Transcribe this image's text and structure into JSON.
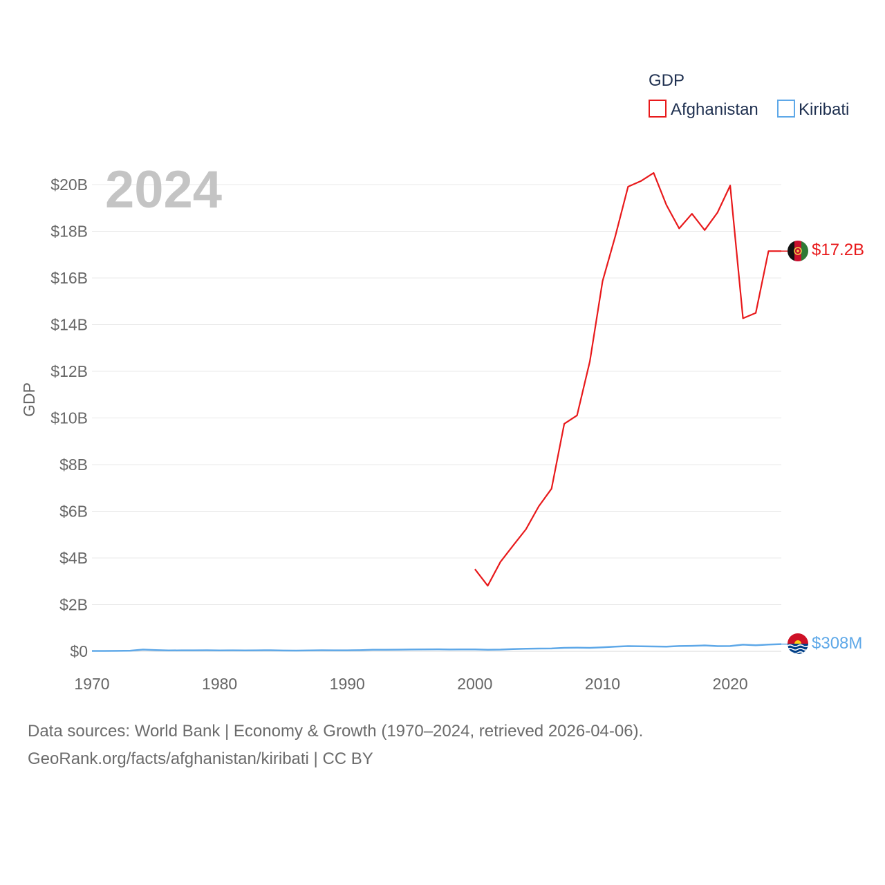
{
  "chart_data": {
    "type": "line",
    "title": "",
    "legend_title": "GDP",
    "legend_position": "top-right",
    "ylabel": "GDP",
    "xlabel": "",
    "year_watermark": "2024",
    "xlim": [
      1970,
      2024
    ],
    "ylim": [
      0,
      20
    ],
    "x_ticks": [
      1970,
      1980,
      1990,
      2000,
      2010,
      2020
    ],
    "y_ticks": [
      0,
      2,
      4,
      6,
      8,
      10,
      12,
      14,
      16,
      18,
      20
    ],
    "y_tick_labels": [
      "$0",
      "$2B",
      "$4B",
      "$6B",
      "$8B",
      "$10B",
      "$12B",
      "$14B",
      "$16B",
      "$18B",
      "$20B"
    ],
    "y_unit": "billion USD",
    "series": [
      {
        "name": "Afghanistan",
        "color": "#e8191b",
        "end_label": "$17.2B",
        "x": [
          2000,
          2001,
          2002,
          2003,
          2004,
          2005,
          2006,
          2007,
          2008,
          2009,
          2010,
          2011,
          2012,
          2013,
          2014,
          2015,
          2016,
          2017,
          2018,
          2019,
          2020,
          2021,
          2022,
          2023,
          2024
        ],
        "values": [
          3.52,
          2.81,
          3.83,
          4.54,
          5.23,
          6.21,
          6.97,
          9.75,
          10.11,
          12.42,
          15.86,
          17.8,
          19.91,
          20.15,
          20.5,
          19.13,
          18.12,
          18.75,
          18.05,
          18.8,
          19.96,
          14.27,
          14.5,
          17.15,
          17.15
        ]
      },
      {
        "name": "Kiribati",
        "color": "#5ea8e8",
        "end_label": "$308M",
        "x": [
          1970,
          1971,
          1972,
          1973,
          1974,
          1975,
          1976,
          1977,
          1978,
          1979,
          1980,
          1981,
          1982,
          1983,
          1984,
          1985,
          1986,
          1987,
          1988,
          1989,
          1990,
          1991,
          1992,
          1993,
          1994,
          1995,
          1996,
          1997,
          1998,
          1999,
          2000,
          2001,
          2002,
          2003,
          2004,
          2005,
          2006,
          2007,
          2008,
          2009,
          2010,
          2011,
          2012,
          2013,
          2014,
          2015,
          2016,
          2017,
          2018,
          2019,
          2020,
          2021,
          2022,
          2023,
          2024
        ],
        "values": [
          0.014,
          0.016,
          0.018,
          0.027,
          0.073,
          0.05,
          0.037,
          0.041,
          0.042,
          0.045,
          0.038,
          0.042,
          0.039,
          0.04,
          0.045,
          0.033,
          0.031,
          0.035,
          0.044,
          0.042,
          0.042,
          0.047,
          0.064,
          0.067,
          0.071,
          0.076,
          0.084,
          0.086,
          0.077,
          0.083,
          0.081,
          0.069,
          0.074,
          0.098,
          0.11,
          0.118,
          0.121,
          0.147,
          0.153,
          0.148,
          0.173,
          0.202,
          0.222,
          0.212,
          0.207,
          0.198,
          0.224,
          0.235,
          0.252,
          0.223,
          0.224,
          0.283,
          0.26,
          0.288,
          0.308
        ]
      }
    ]
  },
  "footer": {
    "line1": "Data sources: World Bank | Economy & Growth (1970–2024, retrieved 2026-04-06).",
    "line2": "GeoRank.org/facts/afghanistan/kiribati | CC BY"
  }
}
